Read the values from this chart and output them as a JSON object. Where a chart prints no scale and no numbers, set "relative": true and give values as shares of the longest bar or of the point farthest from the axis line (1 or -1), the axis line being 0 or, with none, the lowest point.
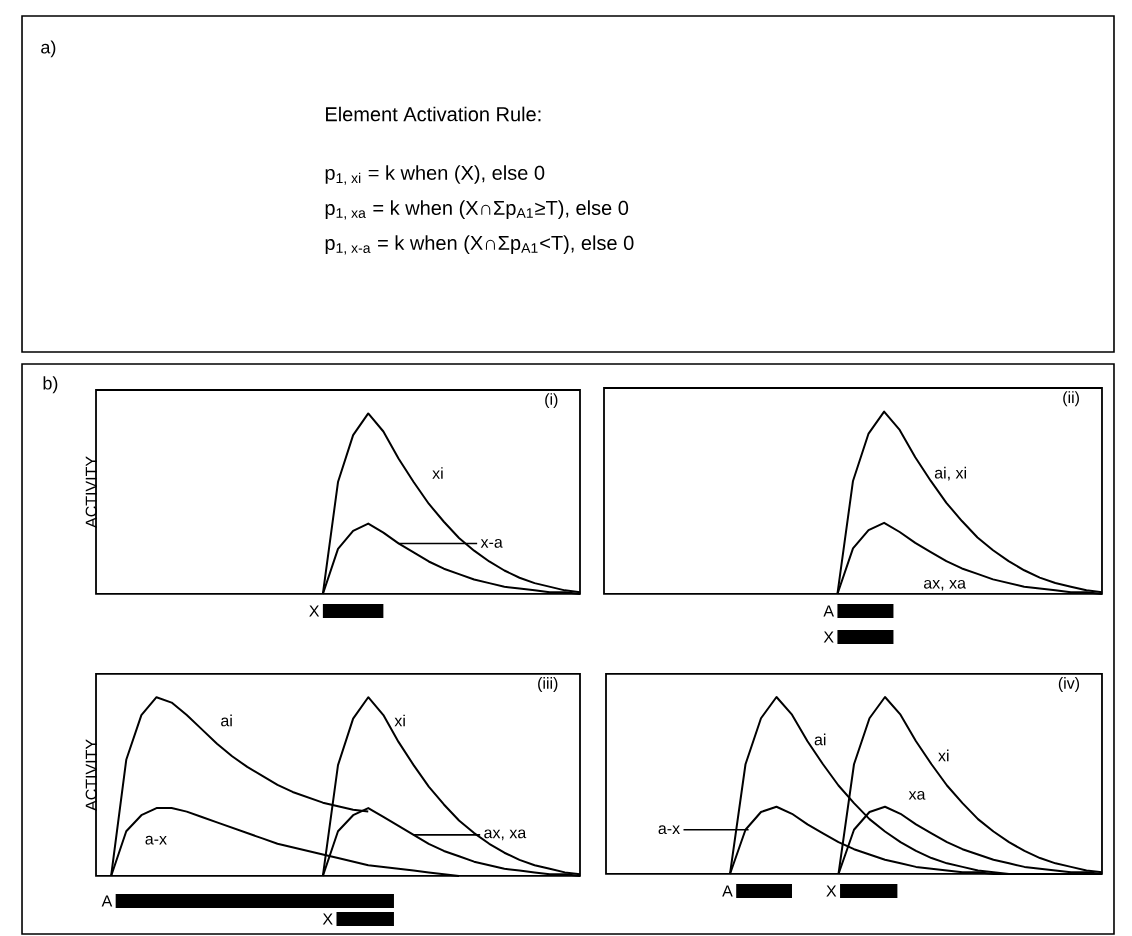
{
  "chart_data": [
    {
      "type": "other",
      "title": "Element Activation Rule:",
      "annotations": [
        "a)",
        "p$_{1, xi}$ = k when (X), else 0",
        "p$_{1, xa}$ = k when (X∩Σp$_{A1}$≥T), else 0",
        "p$_{1, x-a}$ = k when (X∩Σp$_{A1}$<T), else 0"
      ]
    },
    {
      "type": "line",
      "title": "(i)",
      "ylabel": "ACTIVITY",
      "relative": true,
      "annotations": [
        "b)",
        "X"
      ],
      "categories": [
        null,
        null,
        null,
        null,
        null,
        null,
        null,
        null,
        null,
        null,
        null,
        null,
        null,
        null,
        null,
        null,
        null,
        null,
        null,
        null,
        null,
        null,
        null,
        null,
        null,
        null,
        null,
        null,
        null,
        null,
        null,
        null,
        null
      ],
      "series": [
        {
          "name": "xi",
          "color": "#000000",
          "values": [
            null,
            null,
            null,
            null,
            null,
            null,
            null,
            null,
            null,
            null,
            null,
            null,
            null,
            null,
            null,
            0,
            0.62,
            0.88,
            1,
            0.9,
            0.75,
            0.62,
            0.5,
            0.4,
            0.31,
            0.24,
            0.18,
            0.13,
            0.09,
            0.06,
            0.04,
            0.02,
            0.01
          ]
        },
        {
          "name": "x-a",
          "color": "#000000",
          "values": [
            null,
            null,
            null,
            null,
            null,
            null,
            null,
            null,
            null,
            null,
            null,
            null,
            null,
            null,
            null,
            0,
            0.25,
            0.35,
            0.39,
            0.34,
            0.28,
            0.23,
            0.18,
            0.14,
            0.11,
            0.08,
            0.06,
            0.04,
            0.03,
            0.02,
            0.01,
            0.01,
            0
          ]
        }
      ],
      "line_style": "solid"
    },
    {
      "type": "line",
      "title": "(ii)",
      "relative": true,
      "annotations": [
        "A",
        "X"
      ],
      "categories": [
        null,
        null,
        null,
        null,
        null,
        null,
        null,
        null,
        null,
        null,
        null,
        null,
        null,
        null,
        null,
        null,
        null,
        null,
        null,
        null,
        null,
        null,
        null,
        null,
        null,
        null,
        null,
        null,
        null,
        null,
        null,
        null,
        null
      ],
      "series": [
        {
          "name": "ai, xi",
          "color": "#000000",
          "values": [
            null,
            null,
            null,
            null,
            null,
            null,
            null,
            null,
            null,
            null,
            null,
            null,
            null,
            null,
            null,
            0,
            0.62,
            0.88,
            1,
            0.9,
            0.75,
            0.62,
            0.5,
            0.4,
            0.31,
            0.24,
            0.18,
            0.13,
            0.09,
            0.06,
            0.04,
            0.02,
            0.01
          ]
        },
        {
          "name": "ax, xa",
          "color": "#000000",
          "values": [
            null,
            null,
            null,
            null,
            null,
            null,
            null,
            null,
            null,
            null,
            null,
            null,
            null,
            null,
            null,
            0,
            0.25,
            0.35,
            0.39,
            0.34,
            0.28,
            0.23,
            0.18,
            0.14,
            0.11,
            0.08,
            0.06,
            0.04,
            0.03,
            0.02,
            0.01,
            0.01,
            0
          ]
        }
      ],
      "line_style": "solid"
    },
    {
      "type": "line",
      "title": "(iii)",
      "ylabel": "ACTIVITY",
      "relative": true,
      "annotations": [
        "A",
        "X"
      ],
      "categories": [
        null,
        null,
        null,
        null,
        null,
        null,
        null,
        null,
        null,
        null,
        null,
        null,
        null,
        null,
        null,
        null,
        null,
        null,
        null,
        null,
        null,
        null,
        null,
        null,
        null,
        null,
        null,
        null,
        null,
        null,
        null,
        null,
        null
      ],
      "series": [
        {
          "name": "ai",
          "color": "#000000",
          "values": [
            null,
            0,
            0.65,
            0.9,
            1,
            0.97,
            0.9,
            0.82,
            0.74,
            0.67,
            0.61,
            0.56,
            0.51,
            0.47,
            0.44,
            0.41,
            0.39,
            0.37,
            0.36,
            null,
            null,
            null,
            null,
            null,
            null,
            null,
            null,
            null,
            null,
            null,
            null,
            null,
            null
          ]
        },
        {
          "name": "a-x",
          "color": "#000000",
          "values": [
            null,
            0,
            0.25,
            0.34,
            0.38,
            0.38,
            0.36,
            0.33,
            0.3,
            0.27,
            0.24,
            0.21,
            0.18,
            0.16,
            0.14,
            0.12,
            0.1,
            0.08,
            0.06,
            0.05,
            0.04,
            0.03,
            0.02,
            0.01,
            0,
            null,
            null,
            null,
            null,
            null,
            null,
            null,
            null
          ]
        },
        {
          "name": "xi",
          "color": "#000000",
          "values": [
            null,
            null,
            null,
            null,
            null,
            null,
            null,
            null,
            null,
            null,
            null,
            null,
            null,
            null,
            null,
            0,
            0.62,
            0.88,
            1,
            0.9,
            0.75,
            0.62,
            0.5,
            0.4,
            0.31,
            0.24,
            0.18,
            0.13,
            0.09,
            0.06,
            0.04,
            0.02,
            0.01
          ]
        },
        {
          "name": "ax, xa",
          "color": "#000000",
          "values": [
            null,
            null,
            null,
            null,
            null,
            null,
            null,
            null,
            null,
            null,
            null,
            null,
            null,
            null,
            null,
            0,
            0.25,
            0.34,
            0.38,
            0.33,
            0.28,
            0.23,
            0.18,
            0.14,
            0.11,
            0.08,
            0.06,
            0.04,
            0.03,
            0.02,
            0.01,
            0.01,
            0
          ]
        }
      ],
      "line_style": "solid"
    },
    {
      "type": "line",
      "title": "(iv)",
      "relative": true,
      "annotations": [
        "A",
        "X"
      ],
      "categories": [
        null,
        null,
        null,
        null,
        null,
        null,
        null,
        null,
        null,
        null,
        null,
        null,
        null,
        null,
        null,
        null,
        null,
        null,
        null,
        null,
        null,
        null,
        null,
        null,
        null,
        null,
        null,
        null,
        null,
        null,
        null,
        null,
        null
      ],
      "series": [
        {
          "name": "ai",
          "color": "#000000",
          "values": [
            null,
            null,
            null,
            null,
            null,
            null,
            null,
            null,
            0,
            0.62,
            0.88,
            1,
            0.9,
            0.75,
            0.62,
            0.5,
            0.4,
            0.31,
            0.24,
            0.18,
            0.13,
            0.09,
            0.06,
            0.04,
            0.02,
            0.01,
            0,
            0,
            0,
            0,
            0,
            0,
            0
          ]
        },
        {
          "name": "a-x",
          "color": "#000000",
          "values": [
            null,
            null,
            null,
            null,
            null,
            null,
            null,
            null,
            0,
            0.25,
            0.35,
            0.38,
            0.34,
            0.28,
            0.23,
            0.18,
            0.14,
            0.11,
            0.08,
            0.06,
            0.04,
            0.03,
            0.02,
            0.01,
            0.01,
            0,
            0,
            0,
            0,
            0,
            0,
            0,
            0
          ]
        },
        {
          "name": "xi",
          "color": "#000000",
          "values": [
            null,
            null,
            null,
            null,
            null,
            null,
            null,
            null,
            null,
            null,
            null,
            null,
            null,
            null,
            null,
            0,
            0.62,
            0.88,
            1,
            0.9,
            0.75,
            0.62,
            0.5,
            0.4,
            0.31,
            0.24,
            0.18,
            0.13,
            0.09,
            0.06,
            0.04,
            0.02,
            0.01
          ]
        },
        {
          "name": "xa",
          "color": "#000000",
          "values": [
            null,
            null,
            null,
            null,
            null,
            null,
            null,
            null,
            null,
            null,
            null,
            null,
            null,
            null,
            null,
            0,
            0.25,
            0.35,
            0.38,
            0.34,
            0.28,
            0.23,
            0.18,
            0.14,
            0.11,
            0.08,
            0.06,
            0.04,
            0.03,
            0.02,
            0.01,
            0.01,
            0
          ]
        }
      ],
      "line_style": "solid"
    }
  ]
}
